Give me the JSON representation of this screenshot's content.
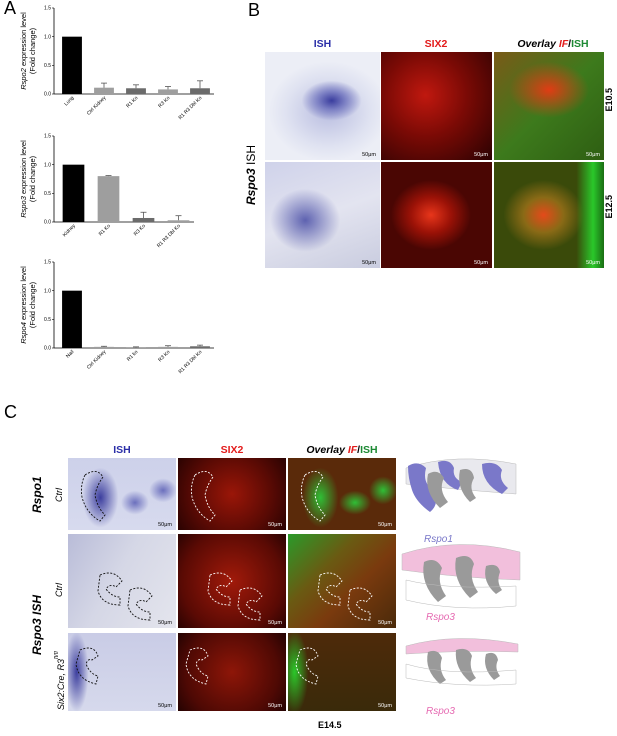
{
  "panels": {
    "a": "A",
    "b": "B",
    "c": "C"
  },
  "charts": {
    "rspo2": {
      "gene": "Rspo2",
      "ylabel_rest": " expression level",
      "ylabel2": "(Fold change)",
      "ylim": [
        0,
        1.5
      ],
      "yticks": [
        "0.0",
        "0.5",
        "1.0",
        "1.5"
      ],
      "categories": [
        "Lung",
        "Ctrl Kidney",
        "R1 Ko",
        "R3 Ko",
        "R1 R3 Dbl Ko"
      ],
      "values": [
        1.0,
        0.11,
        0.1,
        0.08,
        0.1
      ],
      "errors": [
        0.0,
        0.08,
        0.06,
        0.05,
        0.13
      ]
    },
    "rspo3": {
      "gene": "Rspo3",
      "ylabel_rest": " expression level",
      "ylabel2": "(Fold change)",
      "ylim": [
        0,
        1.5
      ],
      "yticks": [
        "0.0",
        "0.5",
        "1.0",
        "1.5"
      ],
      "categories": [
        "Kidney",
        "R1 Ko",
        "R3 Ko",
        "R1 R3 Dbl Ko"
      ],
      "values": [
        1.0,
        0.8,
        0.07,
        0.03
      ],
      "errors": [
        0.0,
        0.01,
        0.1,
        0.08
      ]
    },
    "rspo4": {
      "gene": "Rspo4",
      "ylabel_rest": " expression level",
      "ylabel2": "(Fold change)",
      "ylim": [
        0,
        1.5
      ],
      "yticks": [
        "0.0",
        "0.5",
        "1.0",
        "1.5"
      ],
      "categories": [
        "Nail",
        "Ctrl Kidney",
        "R1 ko",
        "R3 Ko",
        "R1 R3 Dbl Ko"
      ],
      "values": [
        1.0,
        0.02,
        0.01,
        0.02,
        0.03
      ],
      "errors": [
        0.0,
        0.01,
        0.01,
        0.02,
        0.02
      ]
    }
  },
  "chart_colors": [
    "#000000",
    "#9e9e9e",
    "#6b6b6b",
    "#9e9e9e",
    "#6b6b6b"
  ],
  "panel_b": {
    "head_ish": "ISH",
    "head_six2": "SIX2",
    "head_overlay": "Overlay",
    "head_if": "IF",
    "head_slash": "/",
    "head_ish2": "ISH",
    "row_gene": "Rspo3",
    "row_ish": " ISH",
    "stage1": "E10.5",
    "stage2": "E12.5",
    "scale": "50μm"
  },
  "panel_c": {
    "head_ish": "ISH",
    "head_six2": "SIX2",
    "head_overlay": "Overlay",
    "head_if": "IF",
    "head_slash": "/",
    "head_ish2": "ISH",
    "label_rspo1": "Rspo1",
    "label_rspo3ish": "Rspo3 ISH",
    "ctrl1": "Ctrl",
    "ctrl2": "Ctrl",
    "mutant_main": "Six2:Cre, R3",
    "mutant_sup": "fl/fl",
    "schem1": "Rspo1",
    "schem2": "Rspo3",
    "schem3": "Rspo3",
    "stage": "E14.5",
    "scale": "50μm"
  },
  "colors": {
    "ish": "#2b2fa8",
    "six2": "#e31b1b",
    "green": "#1d8a34",
    "rspo1": "#7a78c9",
    "rspo3": "#e66ab2"
  }
}
